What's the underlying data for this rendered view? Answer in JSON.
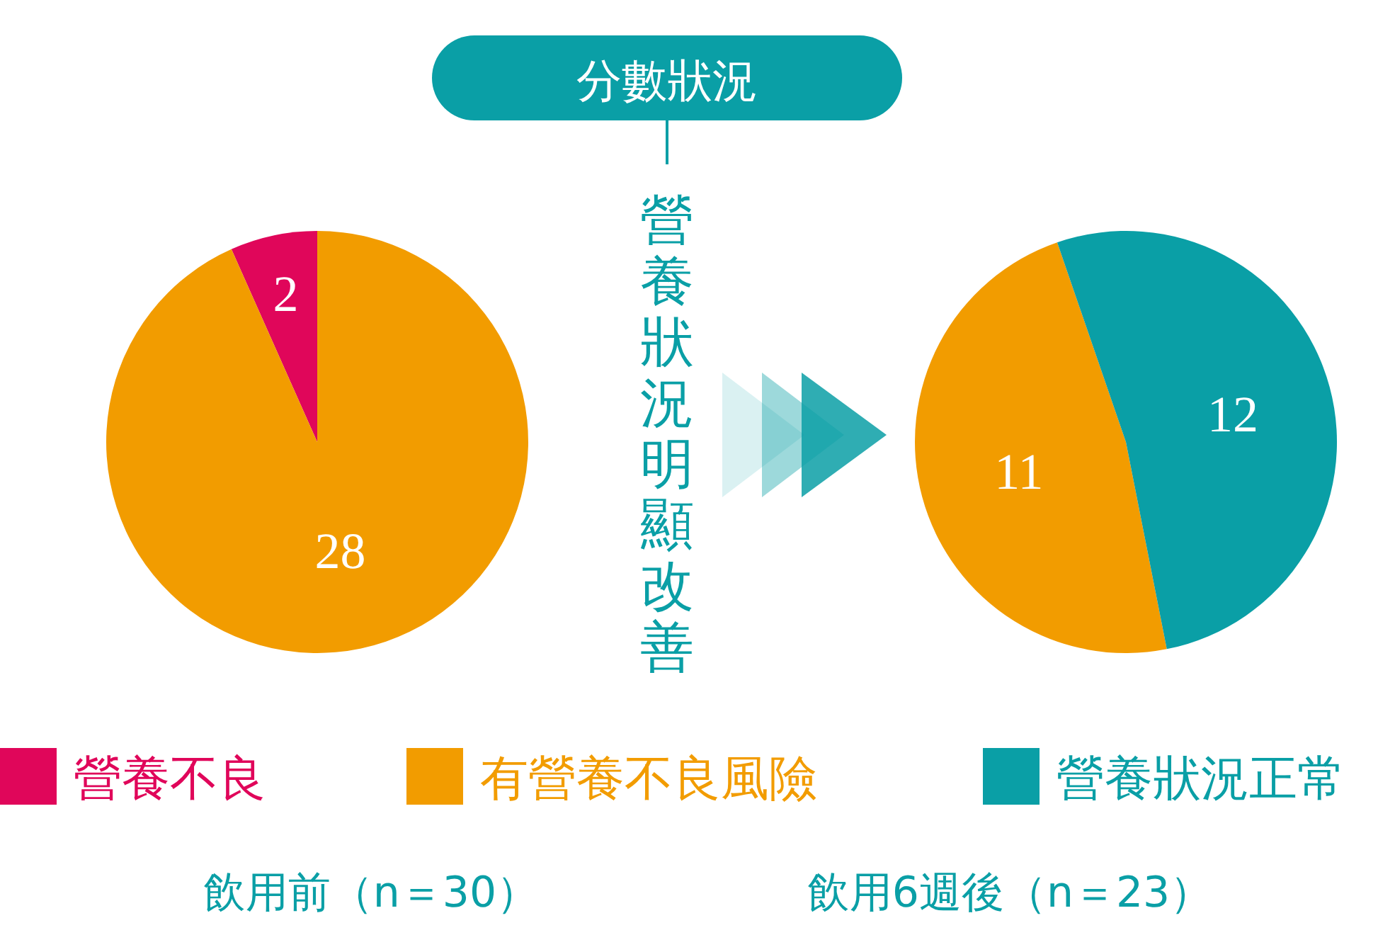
{
  "chart_data": [
    {
      "type": "pie",
      "categories": [
        "營養不良",
        "有營養不良風險"
      ],
      "values": [
        2,
        28
      ],
      "colors": [
        "#e0065a",
        "#f29c00"
      ],
      "data_labels": true,
      "legend": "bottom",
      "xlabel": "飲用前（n＝30）"
    },
    {
      "type": "pie",
      "categories": [
        null,
        "營養狀況正常"
      ],
      "values": [
        11,
        12
      ],
      "colors": [
        "#f29c00",
        "#0a9fa6"
      ],
      "data_labels": true,
      "legend": "bottom",
      "xlabel": "飲用6週後（n＝23）"
    },
    {
      "type": "other",
      "title": "分數狀況",
      "annotations": [
        "營養狀況明顯改善"
      ]
    }
  ]
}
